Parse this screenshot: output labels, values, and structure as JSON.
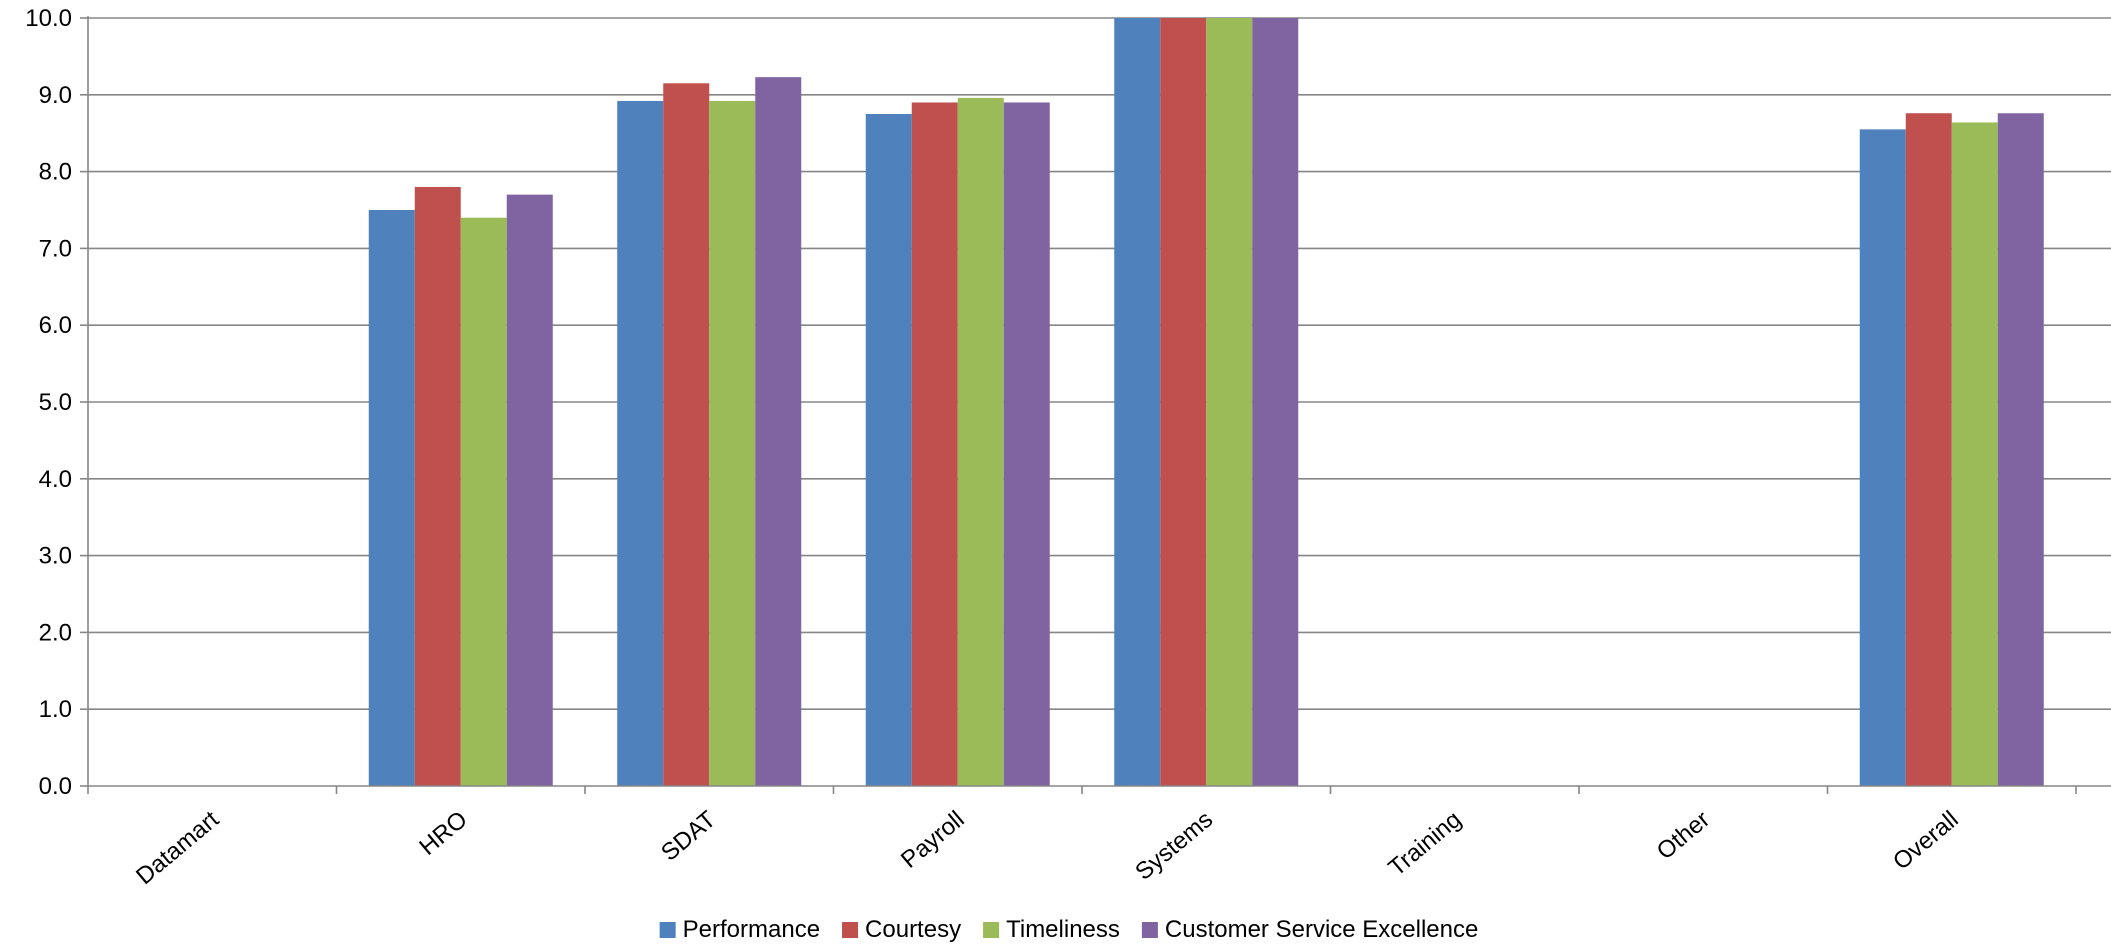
{
  "chart_data": {
    "type": "bar",
    "title": "",
    "xlabel": "",
    "ylabel": "",
    "categories": [
      "Datamart",
      "HRO",
      "SDAT",
      "Payroll",
      "Systems",
      "Training",
      "Other",
      "Overall"
    ],
    "series": [
      {
        "name": "Performance",
        "color": "#4F81BD",
        "values": [
          null,
          7.5,
          8.92,
          8.75,
          10.0,
          null,
          null,
          8.55
        ]
      },
      {
        "name": "Courtesy",
        "color": "#C0504D",
        "values": [
          null,
          7.8,
          9.15,
          8.9,
          10.0,
          null,
          null,
          8.76
        ]
      },
      {
        "name": "Timeliness",
        "color": "#9BBB59",
        "values": [
          null,
          7.4,
          8.92,
          8.96,
          10.0,
          null,
          null,
          8.64
        ]
      },
      {
        "name": "Customer Service Excellence",
        "color": "#8064A2",
        "values": [
          null,
          7.7,
          9.23,
          8.9,
          10.0,
          null,
          null,
          8.76
        ]
      }
    ],
    "ylim": [
      0,
      10
    ],
    "y_ticks": [
      "0.0",
      "1.0",
      "2.0",
      "3.0",
      "4.0",
      "5.0",
      "6.0",
      "7.0",
      "8.0",
      "9.0",
      "10.0"
    ],
    "grid": true,
    "legend_position": "bottom"
  }
}
